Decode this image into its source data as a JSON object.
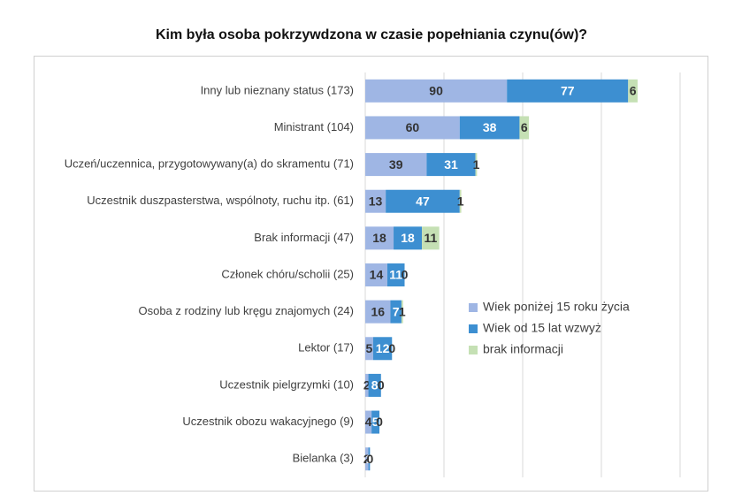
{
  "chart_data": {
    "type": "stacked-barh",
    "title": "Kim była osoba pokrzywdzona w czasie popełniania czynu(ów)?",
    "categories": [
      "Inny lub nieznany status (173)",
      "Ministrant (104)",
      "Uczeń/uczennica, przygotowywany(a) do skramentu (71)",
      "Uczestnik duszpasterstwa, wspólnoty, ruchu itp. (61)",
      "Brak informacji (47)",
      "Członek chóru/scholii (25)",
      "Osoba z rodziny lub kręgu znajomych (24)",
      "Lektor (17)",
      "Uczestnik pielgrzymki (10)",
      "Uczestnik obozu wakacyjnego (9)",
      "Bielanka (3)"
    ],
    "series": [
      {
        "name": "Wiek poniżej 15 roku życia",
        "color": "#9fb6e4",
        "values": [
          90,
          60,
          39,
          13,
          18,
          14,
          16,
          5,
          2,
          4,
          2
        ]
      },
      {
        "name": "Wiek od 15 lat wzwyż",
        "color": "#3d8fd1",
        "values": [
          77,
          38,
          31,
          47,
          18,
          11,
          7,
          12,
          8,
          5,
          1
        ]
      },
      {
        "name": "brak informacji",
        "color": "#c5e0b4",
        "values": [
          6,
          6,
          1,
          1,
          11,
          0,
          1,
          0,
          0,
          0,
          0
        ]
      }
    ],
    "xlim": [
      0,
      200
    ],
    "xticks": [
      0,
      50,
      100,
      150,
      200
    ],
    "grid": true,
    "legend": "right"
  }
}
